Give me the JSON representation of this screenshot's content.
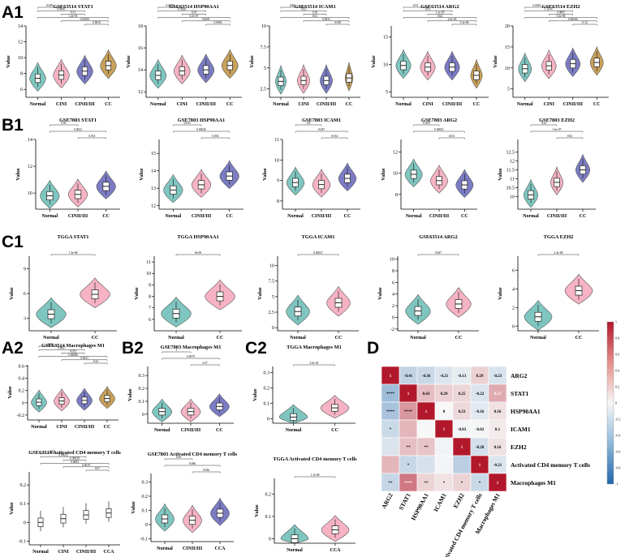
{
  "panel_labels": {
    "A1": "A1",
    "B1": "B1",
    "C1": "C1",
    "A2": "A2",
    "B2": "B2",
    "C2": "C2",
    "D": "D"
  },
  "colors": {
    "teal": "#7fc6c0",
    "pink": "#f6b3c4",
    "purple": "#7b7cc4",
    "gold": "#c9a15a",
    "red": "#b2182b",
    "blue": "#2166ac"
  },
  "chart_data": [
    {
      "type": "violin",
      "id": "a1-stat1",
      "title": "GSE63514 STAT1",
      "ylabel": "Value",
      "categories": [
        "Normal",
        "CINI",
        "CINII/III",
        "CC"
      ],
      "ylim": [
        5,
        14
      ],
      "yticks": [
        6,
        8,
        10,
        12,
        14
      ],
      "medians": [
        7.4,
        7.8,
        8.3,
        9.0
      ],
      "pvalues": [
        "0.029",
        "0.0045",
        "0.31",
        "1.4e-05",
        "0.00016",
        "0.0019"
      ]
    },
    {
      "type": "violin",
      "id": "a1-hsp90aa1",
      "title": "GSE63514 HSP90AA1",
      "ylabel": "Value",
      "categories": [
        "Normal",
        "CINI",
        "CINII/III",
        "CC"
      ],
      "ylim": [
        11.5,
        18
      ],
      "yticks": [
        12,
        14,
        16,
        18
      ],
      "medians": [
        13.5,
        13.9,
        14.0,
        14.4
      ],
      "pvalues": [
        "0.0059",
        "0.0026",
        "0.29",
        "6.5e-07",
        "0.0001",
        "0.0063"
      ]
    },
    {
      "type": "violin",
      "id": "a1-icam1",
      "title": "GSE63514 ICAM1",
      "ylabel": "Value",
      "categories": [
        "Normal",
        "CINI",
        "CINII/III",
        "CC"
      ],
      "ylim": [
        1.5,
        10
      ],
      "yticks": [
        2.5,
        5.0,
        7.5,
        10.0
      ],
      "medians": [
        3.4,
        3.5,
        3.5,
        3.8
      ],
      "pvalues": [
        "0.86",
        "0.23",
        "0.18",
        "0.61",
        "0.0031",
        "0.038"
      ]
    },
    {
      "type": "violin",
      "id": "a1-arg2",
      "title": "GSE63514 ARG2",
      "ylabel": "Value",
      "categories": [
        "Normal",
        "CINI",
        "CINII/III",
        "CC"
      ],
      "ylim": [
        4,
        17
      ],
      "yticks": [
        5,
        10,
        15
      ],
      "medians": [
        9.8,
        9.5,
        9.5,
        8.0
      ],
      "pvalues": [
        "0.53",
        "0.53",
        "1.1e-05",
        "0.62",
        "2.6e-05",
        "3.3e-06"
      ]
    },
    {
      "type": "violin",
      "id": "a1-ezh2",
      "title": "GSE63514 EZH2",
      "ylabel": "Value",
      "categories": [
        "Normal",
        "CINI",
        "CINII/III",
        "CC"
      ],
      "ylim": [
        3,
        20
      ],
      "yticks": [
        5,
        10,
        15,
        20
      ],
      "medians": [
        9.8,
        10.5,
        11.0,
        11.3
      ],
      "pvalues": [
        "0.0063",
        "1.1e-07",
        "0.0065",
        "5.6e-08",
        "0.00066",
        "0.34"
      ]
    },
    {
      "type": "violin",
      "id": "b1-stat1",
      "title": "GSE7803 STAT1",
      "ylabel": "Value",
      "categories": [
        "Normal",
        "CINII/III",
        "CC"
      ],
      "ylim": [
        8.8,
        14
      ],
      "yticks": [
        10,
        12,
        14
      ],
      "medians": [
        9.8,
        9.9,
        10.5
      ],
      "pvalues": [
        "0.81",
        "0.0022",
        "0.031"
      ]
    },
    {
      "type": "violin",
      "id": "b1-hsp90aa1",
      "title": "GSE7803 HSP90AA1",
      "ylabel": "Value",
      "categories": [
        "Normal",
        "CINII/III",
        "CC"
      ],
      "ylim": [
        11.8,
        15.8
      ],
      "yticks": [
        12,
        13,
        14,
        15
      ],
      "medians": [
        12.9,
        13.2,
        13.7
      ],
      "pvalues": [
        "0.033",
        "0.00026",
        "0.036"
      ]
    },
    {
      "type": "violin",
      "id": "b1-icam1",
      "title": "GSE7803 ICAM1",
      "ylabel": "Value",
      "categories": [
        "Normal",
        "CINII/III",
        "CC"
      ],
      "ylim": [
        7.6,
        11
      ],
      "yticks": [
        8,
        9,
        10,
        11
      ],
      "medians": [
        8.9,
        8.8,
        9.1
      ],
      "pvalues": [
        "0.6",
        "0.047",
        "0.014"
      ]
    },
    {
      "type": "violin",
      "id": "b1-arg2",
      "title": "GSE7803 ARG2",
      "ylabel": "Value",
      "categories": [
        "Normal",
        "CINII/III",
        "CC"
      ],
      "ylim": [
        6.6,
        13.2
      ],
      "yticks": [
        8,
        10,
        12
      ],
      "medians": [
        9.9,
        9.3,
        8.9
      ],
      "pvalues": [
        "0.018",
        "0.00051",
        "0.011"
      ]
    },
    {
      "type": "violin",
      "id": "b1-ezh2",
      "title": "GSE7803 EZH2",
      "ylabel": "Value",
      "categories": [
        "Normal",
        "CINII/III",
        "CC"
      ],
      "ylim": [
        9.3,
        13.2
      ],
      "yticks": [
        10.0,
        10.5,
        11.0,
        11.5,
        12.0,
        12.5
      ],
      "medians": [
        10.1,
        10.8,
        11.5
      ],
      "pvalues": [
        "0.42",
        "1.6e-07",
        "0.02"
      ]
    },
    {
      "type": "violin",
      "id": "c1-stat1",
      "title": "TGGA STAT1",
      "ylabel": "Value",
      "categories": [
        "Normal",
        "CC"
      ],
      "ylim": [
        1.5,
        10.5
      ],
      "yticks": [
        3,
        6,
        9
      ],
      "medians": [
        3.5,
        5.9
      ],
      "pvalues": [
        "7.4e-08"
      ]
    },
    {
      "type": "violin",
      "id": "c1-hsp90aa1",
      "title": "TGGA HSP90AA1",
      "ylabel": "Value",
      "categories": [
        "Normal",
        "CC"
      ],
      "ylim": [
        5,
        11.5
      ],
      "yticks": [
        6,
        7,
        8,
        9,
        10,
        11
      ],
      "medians": [
        6.5,
        8.0
      ],
      "pvalues": [
        "9e-09"
      ]
    },
    {
      "type": "violin",
      "id": "c1-icam1",
      "title": "TGGA ICAM1",
      "ylabel": "Value",
      "categories": [
        "Normal",
        "CC"
      ],
      "ylim": [
        -0.5,
        11.5
      ],
      "yticks": [
        0.0,
        2.5,
        5.0,
        7.5,
        10.0
      ],
      "medians": [
        2.6,
        4.0
      ],
      "pvalues": [
        "0.00027"
      ]
    },
    {
      "type": "violin",
      "id": "c1-arg2",
      "title": "GSE63514 ARG2",
      "ylabel": "Value",
      "categories": [
        "Normal",
        "CC"
      ],
      "ylim": [
        -2.3,
        10.5
      ],
      "yticks": [
        -2,
        0,
        2,
        4,
        6,
        8,
        10
      ],
      "medians": [
        1.1,
        2.3
      ],
      "pvalues": [
        "0.067"
      ]
    },
    {
      "type": "violin",
      "id": "c1-ezh2",
      "title": "TGGA EZH2",
      "ylabel": "Value",
      "categories": [
        "Normal",
        "CC"
      ],
      "ylim": [
        -0.5,
        7.5
      ],
      "yticks": [
        0,
        2,
        4,
        6
      ],
      "medians": [
        1.0,
        3.8
      ],
      "pvalues": [
        "2.4e-09"
      ]
    },
    {
      "type": "violin",
      "id": "a2-m1",
      "title": "GSE63514 Macrophages M1",
      "ylabel": "Value",
      "categories": [
        "Normal",
        "CINI",
        "CINII/III",
        "CC"
      ],
      "ylim": [
        -0.28,
        0.62
      ],
      "yticks": [
        -0.2,
        0.0,
        0.2,
        0.4,
        0.6
      ],
      "medians": [
        0.01,
        0.03,
        0.04,
        0.07
      ],
      "pvalues": [
        "0.58",
        "0.0037",
        "0.032",
        "0.00096",
        "0.0011",
        "0.22"
      ]
    },
    {
      "type": "violin",
      "id": "b2-m1",
      "title": "GSE7803 Macrophages M1",
      "ylabel": "Value",
      "categories": [
        "Normal",
        "CINII/III",
        "CC"
      ],
      "ylim": [
        -0.07,
        0.37
      ],
      "yticks": [
        0.0,
        0.1,
        0.2,
        0.3
      ],
      "medians": [
        0.02,
        0.02,
        0.06
      ],
      "pvalues": [
        "1",
        "0.0079",
        "0.07"
      ]
    },
    {
      "type": "violin",
      "id": "c2-m1",
      "title": "TGGA Macrophages M1",
      "ylabel": "Value",
      "categories": [
        "Normal",
        "CC"
      ],
      "ylim": [
        -0.03,
        0.34
      ],
      "yticks": [
        0.0,
        0.1,
        0.2,
        0.3
      ],
      "medians": [
        0.01,
        0.07
      ],
      "pvalues": [
        "5.6e-05"
      ]
    },
    {
      "type": "box",
      "id": "a2-cd4",
      "title": "GSE63514 Activated CD4 memory T cells",
      "ylabel": "Value",
      "categories": [
        "Normal",
        "CINI",
        "CINII/III",
        "CCA"
      ],
      "ylim": [
        -0.12,
        0.27
      ],
      "yticks": [
        -0.1,
        0.0,
        0.1,
        0.2
      ],
      "medians": [
        0.0,
        0.02,
        0.04,
        0.05
      ],
      "pvalues": [
        "0.25",
        "0.00022",
        "0.00028",
        "0.0003",
        "0.0019",
        "0.07"
      ]
    },
    {
      "type": "violin",
      "id": "b2-cd4",
      "title": "GSE7803 Activated CD4 memory T cells",
      "ylabel": "Value",
      "categories": [
        "Normal",
        "CINII/III",
        "CCA"
      ],
      "ylim": [
        -0.12,
        0.36
      ],
      "yticks": [
        -0.1,
        0.0,
        0.1,
        0.2,
        0.3
      ],
      "medians": [
        0.04,
        0.03,
        0.08
      ],
      "pvalues": [
        "0.06",
        "0.066",
        "0.036"
      ]
    },
    {
      "type": "violin",
      "id": "c2-cd4",
      "title": "TGGA  Activated CD4 memory T cells",
      "ylabel": "Value",
      "categories": [
        "Normal",
        "CCA"
      ],
      "ylim": [
        -0.02,
        0.27
      ],
      "yticks": [
        0.0,
        0.1,
        0.2
      ],
      "medians": [
        0.0,
        0.04
      ],
      "pvalues": [
        "1.1e-06"
      ]
    },
    {
      "type": "heatmap",
      "id": "d-corr",
      "variables": [
        "ARG2",
        "STAT1",
        "HSP90AA1",
        "ICAM1",
        "EZH2",
        "Activated CD4 memory T cells",
        "Macrophages M1"
      ],
      "values": [
        [
          1,
          -0.41,
          -0.36,
          -0.21,
          -0.13,
          0.29,
          -0.23
        ],
        [
          -0.41,
          1,
          0.43,
          0.29,
          0.25,
          -0.22,
          0.57
        ],
        [
          -0.36,
          0.43,
          1,
          0,
          0.23,
          -0.16,
          0.16
        ],
        [
          -0.21,
          0.29,
          0,
          1,
          -0.03,
          -0.02,
          0.1
        ],
        [
          -0.13,
          0.25,
          0.23,
          -0.03,
          1,
          -0.28,
          0.16
        ],
        [
          0.29,
          -0.22,
          -0.16,
          -0.02,
          -0.28,
          1,
          -0.21
        ],
        [
          -0.23,
          0.57,
          0.16,
          0.1,
          0.16,
          -0.21,
          1
        ]
      ],
      "lower_labels": [
        [],
        [
          "****"
        ],
        [
          "****",
          "****"
        ],
        [
          "*",
          "",
          ""
        ],
        [
          "",
          "**",
          "**",
          ""
        ],
        [
          "",
          "*",
          "",
          "",
          ""
        ],
        [
          "**",
          "****",
          "**",
          "*",
          "*",
          "*"
        ]
      ],
      "upper_labels": [
        [
          "1",
          "-0.41",
          "-0.36",
          "-0.21",
          "-0.13",
          "0.29",
          "-0.23"
        ],
        [
          "",
          "1",
          "0.43",
          "0.29",
          "0.25",
          "-0.22",
          "0.57"
        ],
        [
          "",
          "",
          "1",
          "0",
          "0.23",
          "-0.16",
          "0.16"
        ],
        [
          "",
          "",
          "",
          "1",
          "-0.03",
          "-0.02",
          "0.1"
        ],
        [
          "",
          "",
          "",
          "",
          "1",
          "-0.28",
          "0.16"
        ],
        [
          "",
          "",
          "",
          "",
          "",
          "1",
          "-0.21"
        ],
        [
          "",
          "",
          "",
          "",
          "",
          "",
          "1"
        ]
      ],
      "colorbar_ticks": [
        "1",
        "0.8",
        "0.6",
        "0.4",
        "0.2",
        "0",
        "-0.2",
        "-0.4",
        "-0.6",
        "-0.8",
        "-1"
      ]
    }
  ]
}
